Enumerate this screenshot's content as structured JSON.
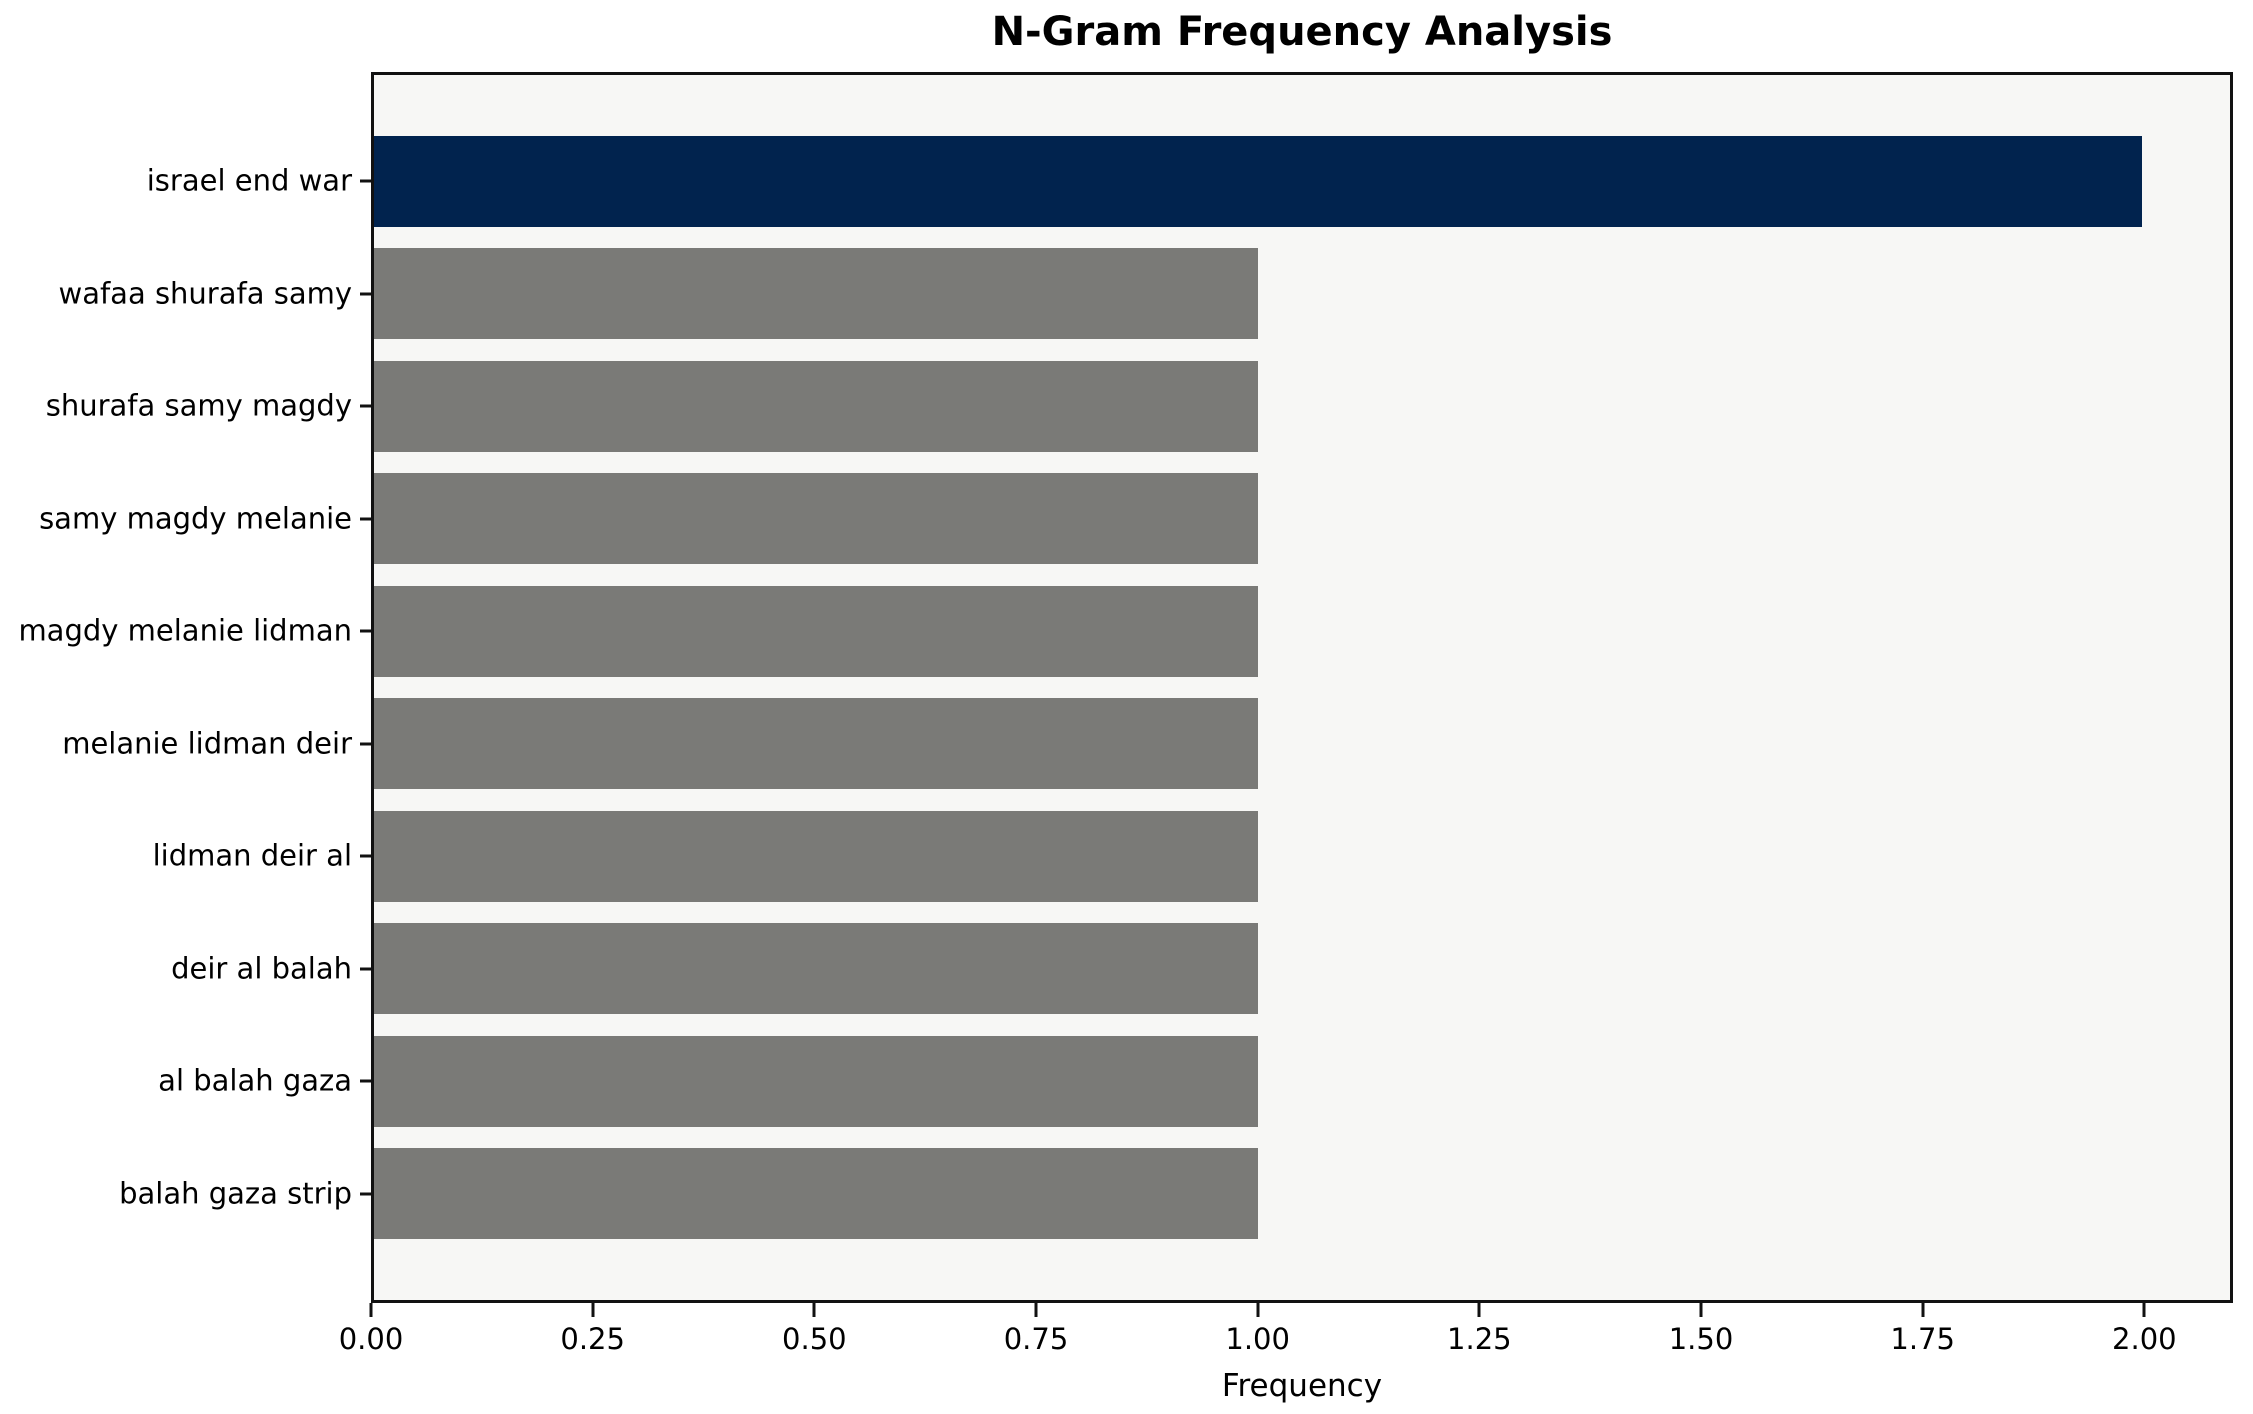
{
  "chart_data": {
    "type": "bar",
    "orientation": "horizontal",
    "title": "N-Gram Frequency Analysis",
    "xlabel": "Frequency",
    "ylabel": "",
    "categories": [
      "israel end war",
      "wafaa shurafa samy",
      "shurafa samy magdy",
      "samy magdy melanie",
      "magdy melanie lidman",
      "melanie lidman deir",
      "lidman deir al",
      "deir al balah",
      "al balah gaza",
      "balah gaza strip"
    ],
    "values": [
      2,
      1,
      1,
      1,
      1,
      1,
      1,
      1,
      1,
      1
    ],
    "bar_colors": [
      "#01234e",
      "#7a7a77",
      "#7a7a77",
      "#7a7a77",
      "#7a7a77",
      "#7a7a77",
      "#7a7a77",
      "#7a7a77",
      "#7a7a77",
      "#7a7a77"
    ],
    "highlight_color": "#01234e",
    "default_bar_color": "#7a7a77",
    "x_ticks": [
      "0.00",
      "0.25",
      "0.50",
      "0.75",
      "1.00",
      "1.25",
      "1.50",
      "1.75",
      "2.00"
    ],
    "xlim": [
      0,
      2.1
    ],
    "grid": false,
    "legend": null,
    "axes_background": "#f7f7f5",
    "figure_background": "#ffffff",
    "spine_color": "#111111"
  }
}
